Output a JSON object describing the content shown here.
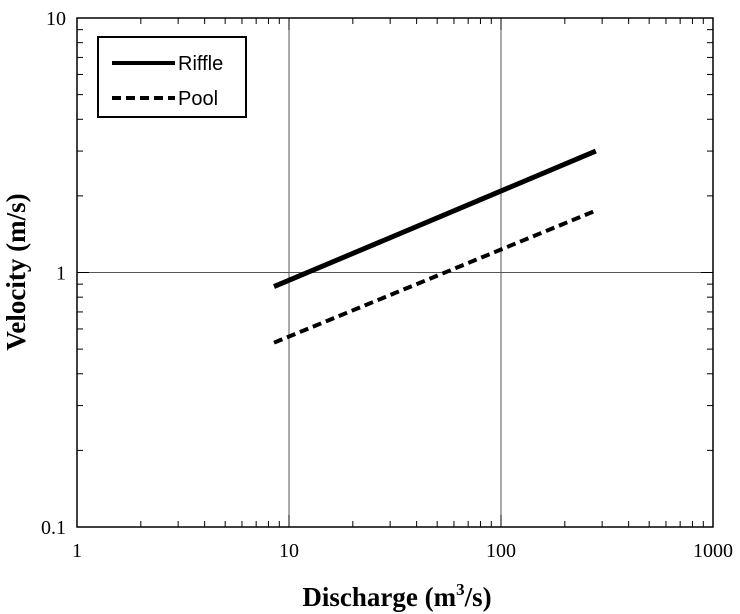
{
  "chart_data": {
    "type": "line",
    "x_scale": "log",
    "y_scale": "log",
    "xlim": [
      1,
      1000
    ],
    "ylim": [
      0.1,
      10
    ],
    "x_ticks": [
      "1",
      "10",
      "100",
      "1000"
    ],
    "y_ticks": [
      "0.1",
      "1",
      "10"
    ],
    "xlabel": {
      "prefix": "Discharge (m",
      "sup": "3",
      "suffix": "/s)"
    },
    "ylabel": "Velocity (m/s)",
    "grid": "major",
    "legend_position": "top-left",
    "series": [
      {
        "name": "Riffle",
        "style": "solid",
        "color": "#000000",
        "x": [
          8.5,
          280
        ],
        "y": [
          0.88,
          3.0
        ]
      },
      {
        "name": "Pool",
        "style": "dashed",
        "color": "#000000",
        "x": [
          8.5,
          280
        ],
        "y": [
          0.53,
          1.75
        ]
      }
    ]
  }
}
